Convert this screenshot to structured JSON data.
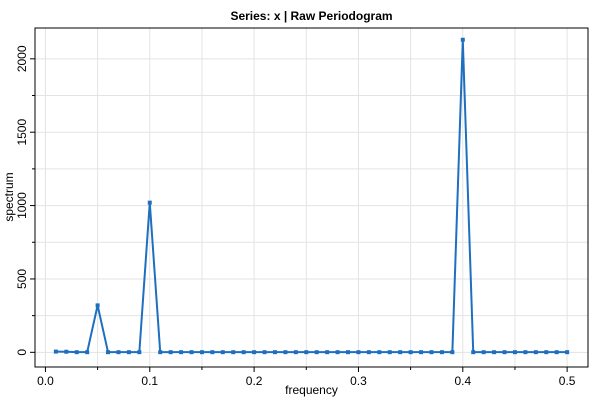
{
  "chart_data": {
    "type": "line",
    "title": "Series: x  |  Raw Periodogram",
    "xlabel": "frequency",
    "ylabel": "spectrum",
    "xlim": [
      -0.01,
      0.52
    ],
    "ylim": [
      -100,
      2210
    ],
    "xticks": [
      0.0,
      0.1,
      0.2,
      0.3,
      0.4,
      0.5
    ],
    "xtick_labels": [
      "0.0",
      "0.1",
      "0.2",
      "0.3",
      "0.4",
      "0.5"
    ],
    "yticks": [
      0,
      500,
      1000,
      1500,
      2000
    ],
    "ytick_labels": [
      "0",
      "500",
      "1000",
      "1500",
      "2000"
    ],
    "grid": true,
    "line_color": "#1f6fbf",
    "grid_color": "#e3e3e3",
    "series": [
      {
        "x": [
          0.01,
          0.02,
          0.03,
          0.04,
          0.05,
          0.06,
          0.07,
          0.08,
          0.09,
          0.1,
          0.11,
          0.12,
          0.13,
          0.14,
          0.15,
          0.16,
          0.17,
          0.18,
          0.19,
          0.2,
          0.21,
          0.22,
          0.23,
          0.24,
          0.25,
          0.26,
          0.27,
          0.28,
          0.29,
          0.3,
          0.31,
          0.32,
          0.33,
          0.34,
          0.35,
          0.36,
          0.37,
          0.38,
          0.39,
          0.4,
          0.41,
          0.42,
          0.43,
          0.44,
          0.45,
          0.46,
          0.47,
          0.48,
          0.49,
          0.5
        ],
        "y": [
          5,
          4,
          1,
          1,
          320,
          1,
          1,
          1,
          1,
          1020,
          1,
          1,
          1,
          1,
          1,
          1,
          1,
          1,
          1,
          1,
          1,
          1,
          1,
          1,
          1,
          1,
          1,
          1,
          1,
          1,
          1,
          1,
          1,
          1,
          1,
          1,
          1,
          1,
          1,
          2130,
          1,
          1,
          1,
          1,
          1,
          1,
          1,
          1,
          1,
          1
        ]
      }
    ]
  }
}
